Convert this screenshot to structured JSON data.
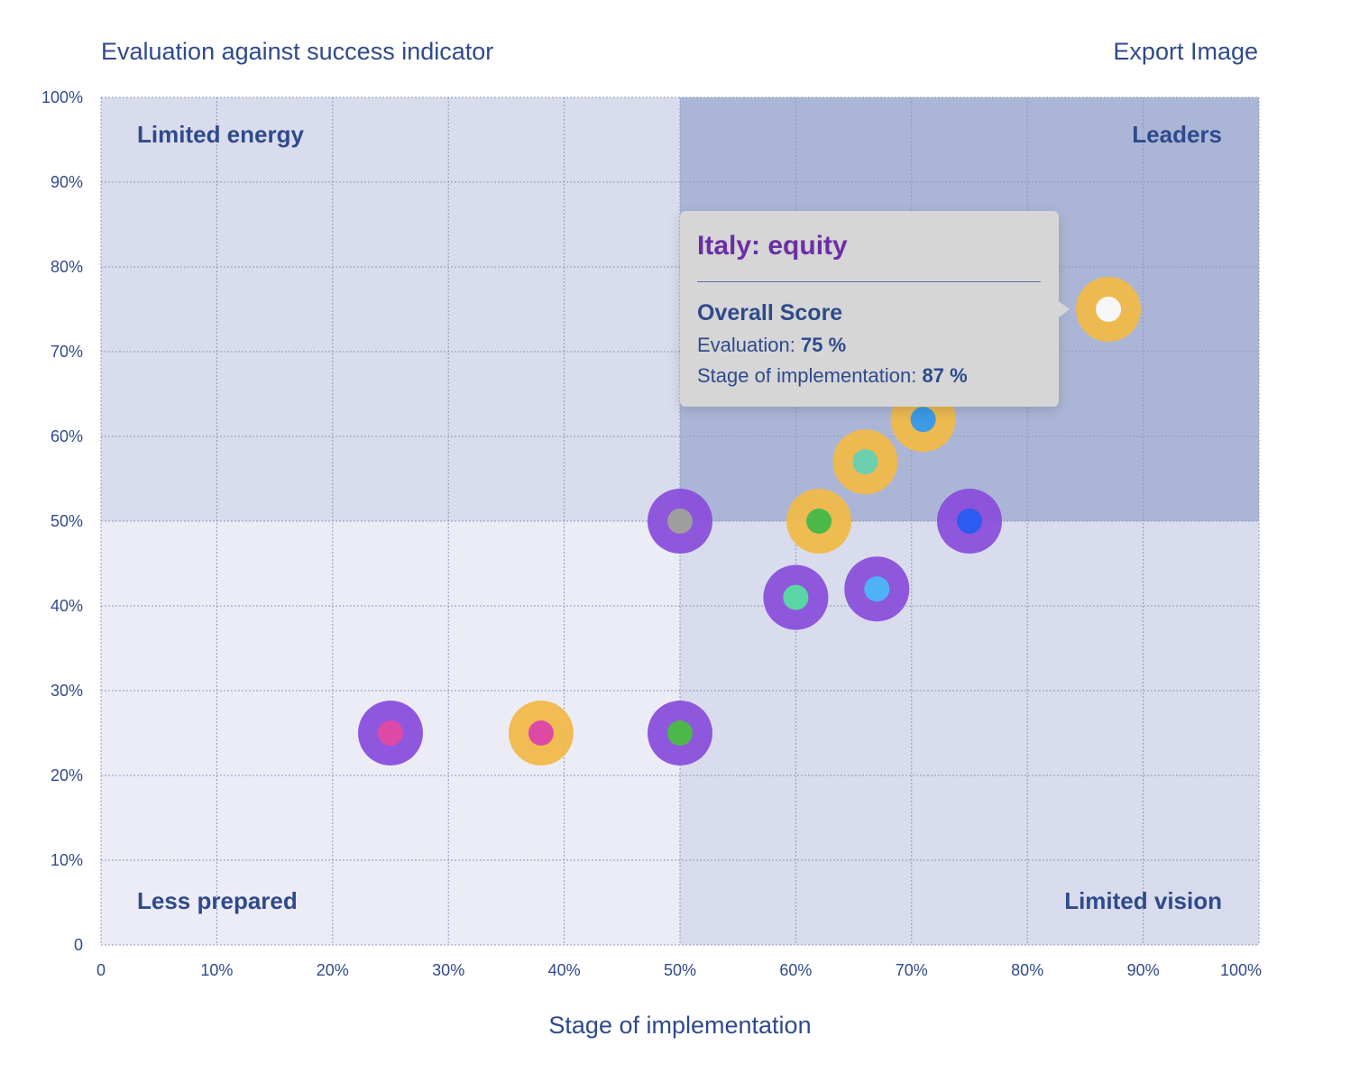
{
  "header": {
    "title": "Evaluation against success indicator",
    "export_label": "Export Image"
  },
  "colors": {
    "quadrant_low_low": "#ececf7",
    "quadrant_mid": "#d9dcec",
    "quadrant_leaders": "#abb6d7",
    "purple": "#8a4fdb",
    "amber": "#f0b94a",
    "text": "#2f4a8c"
  },
  "chart_data": {
    "type": "scatter",
    "title": "Evaluation against success indicator",
    "xlabel": "Stage of implementation",
    "ylabel": "",
    "xlim": [
      0,
      100
    ],
    "ylim": [
      0,
      100
    ],
    "grid": true,
    "x_ticks": [
      "0",
      "10%",
      "20%",
      "30%",
      "40%",
      "50%",
      "60%",
      "70%",
      "80%",
      "90%",
      "100%"
    ],
    "y_ticks": [
      "0",
      "10%",
      "20%",
      "30%",
      "40%",
      "50%",
      "60%",
      "70%",
      "80%",
      "90%",
      "100%"
    ],
    "quadrants": {
      "top_left": "Limited energy",
      "top_right": "Leaders",
      "bottom_left": "Less prepared",
      "bottom_right": "Limited vision"
    },
    "points": [
      {
        "x": 25,
        "y": 25,
        "ring": "#8a4fdb",
        "dot": "#dd4aa6"
      },
      {
        "x": 38,
        "y": 25,
        "ring": "#f0b94a",
        "dot": "#dd4aa6"
      },
      {
        "x": 50,
        "y": 25,
        "ring": "#8a4fdb",
        "dot": "#4cb84a"
      },
      {
        "x": 50,
        "y": 50,
        "ring": "#8a4fdb",
        "dot": "#9e9e9e"
      },
      {
        "x": 60,
        "y": 41,
        "ring": "#8a4fdb",
        "dot": "#5ad6a6"
      },
      {
        "x": 62,
        "y": 50,
        "ring": "#f0b94a",
        "dot": "#4cb84a"
      },
      {
        "x": 66,
        "y": 57,
        "ring": "#f0b94a",
        "dot": "#6ccfb0"
      },
      {
        "x": 67,
        "y": 42,
        "ring": "#8a4fdb",
        "dot": "#4fb2f7"
      },
      {
        "x": 71,
        "y": 62,
        "ring": "#f0b94a",
        "dot": "#3d9be6"
      },
      {
        "x": 75,
        "y": 50,
        "ring": "#8a4fdb",
        "dot": "#2d5af0"
      },
      {
        "x": 87,
        "y": 75,
        "ring": "#f0b94a",
        "dot": "#f7f7f7"
      }
    ]
  },
  "tooltip": {
    "title": "Italy: equity",
    "heading": "Overall Score",
    "evaluation_label": "Evaluation:",
    "evaluation_value": "75 %",
    "stage_label": "Stage of implementation:",
    "stage_value": "87 %"
  }
}
